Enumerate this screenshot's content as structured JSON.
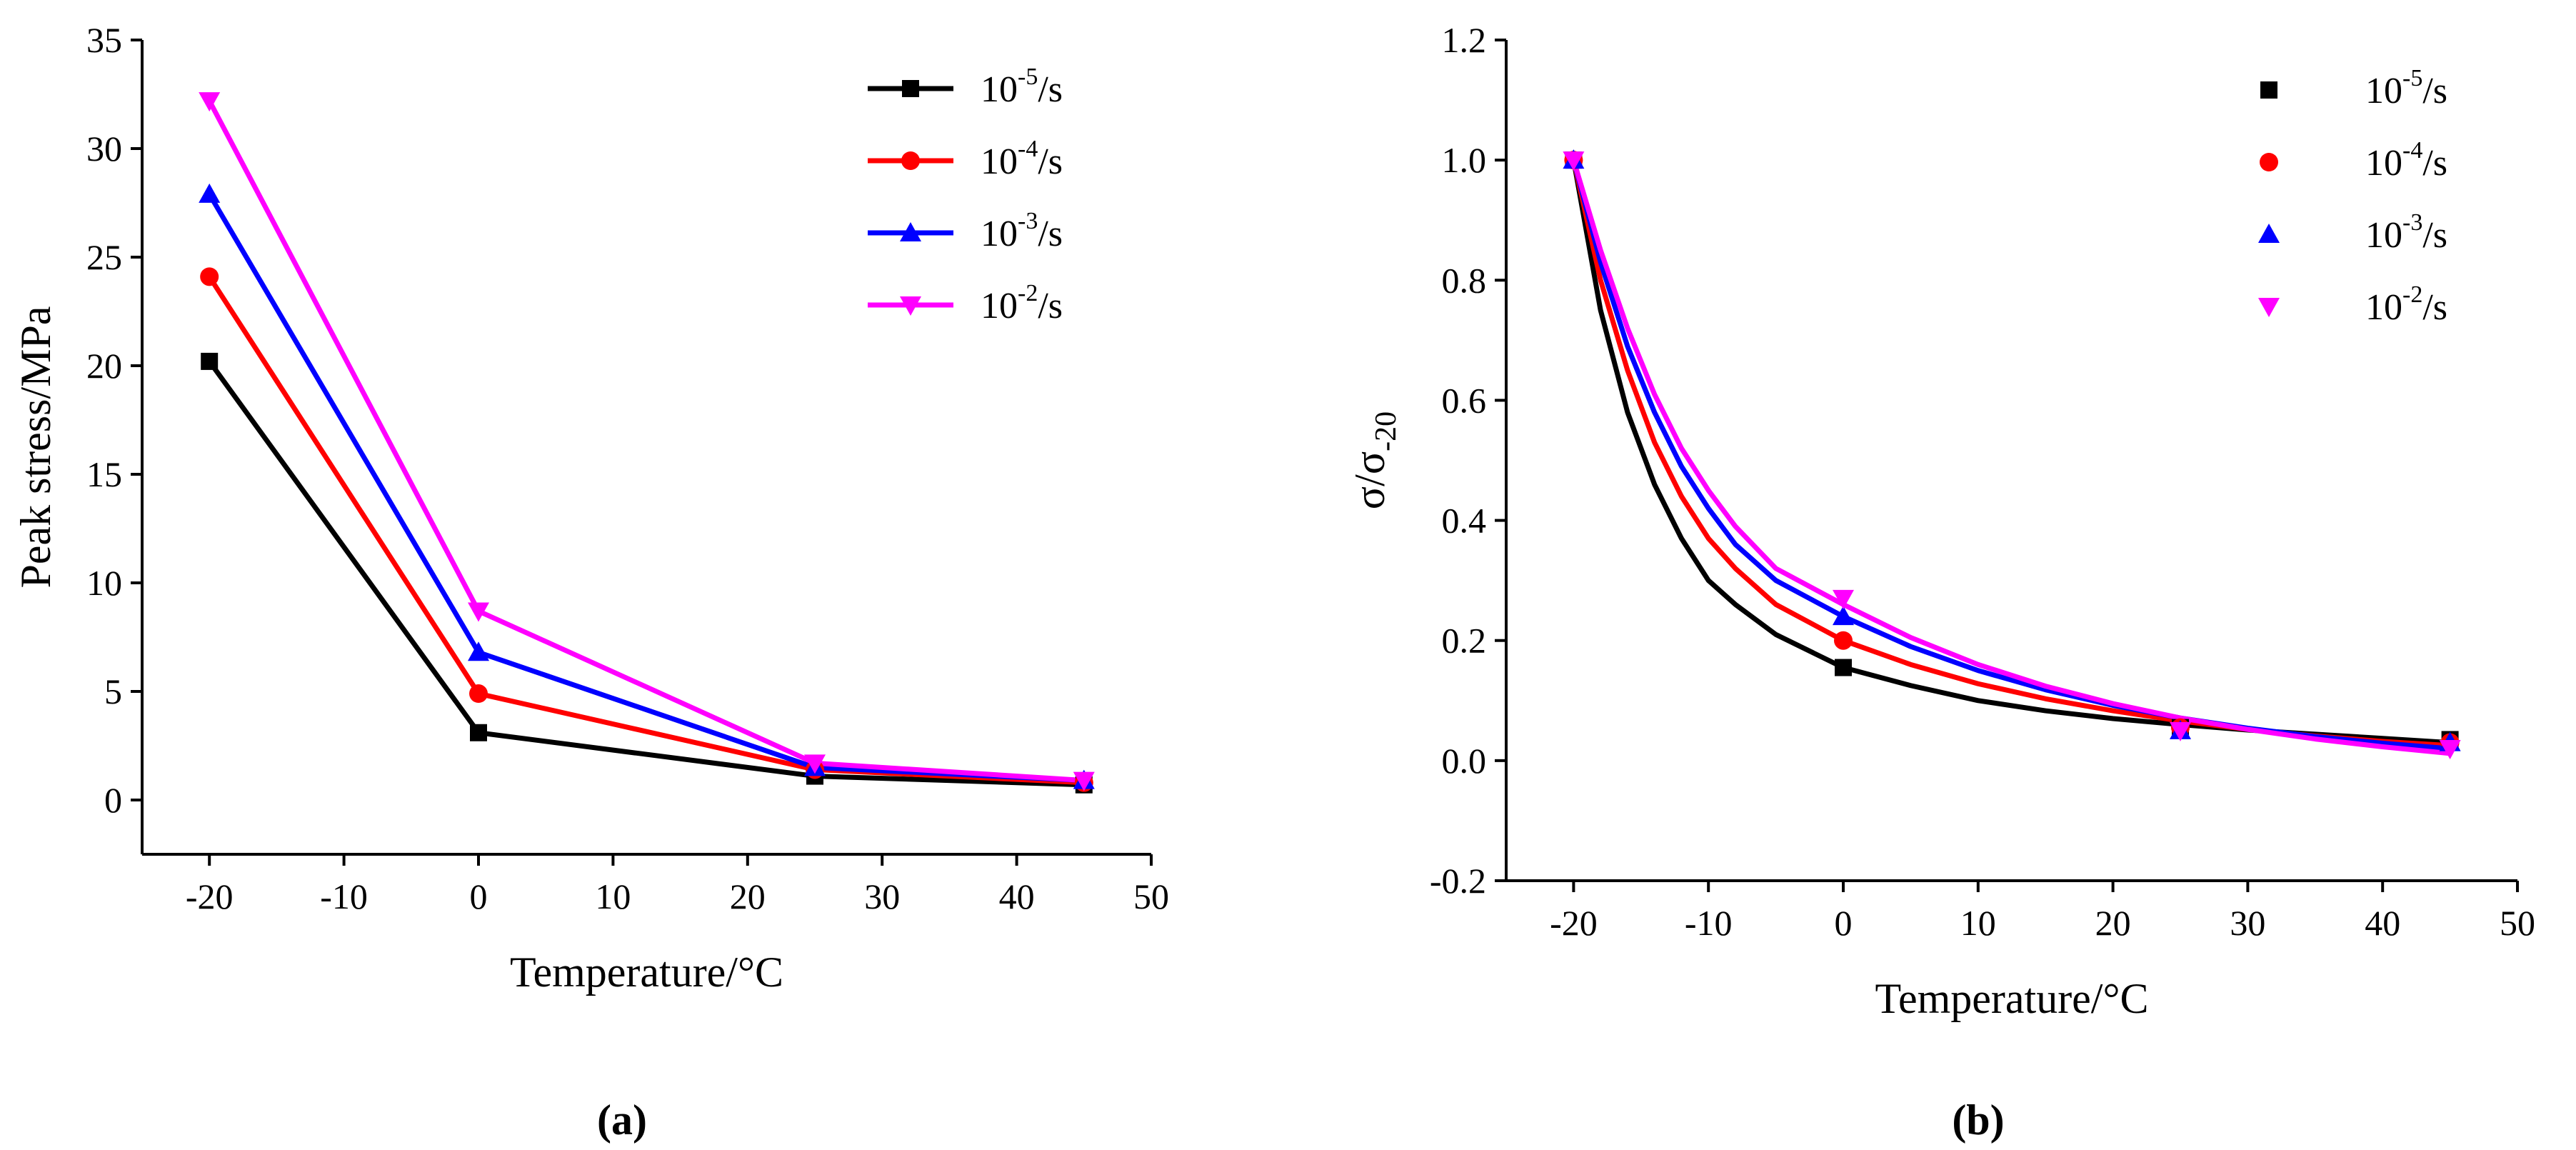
{
  "panel_a_caption": "(a)",
  "panel_b_caption": "(b)",
  "colors": {
    "s1": "#000000",
    "s2": "#ff0000",
    "s3": "#0000ff",
    "s4": "#ff00ff"
  },
  "chart_data": [
    {
      "type": "line",
      "panel": "(a)",
      "xlabel": "Temperature/°C",
      "ylabel": "Peak stress/MPa",
      "xlim": [
        -25,
        50
      ],
      "ylim": [
        -2.5,
        35
      ],
      "xticks": [
        -20,
        -10,
        0,
        10,
        20,
        30,
        40,
        50
      ],
      "yticks": [
        0,
        5,
        10,
        15,
        20,
        25,
        30,
        35
      ],
      "x": [
        -20,
        0,
        25,
        45
      ],
      "legend_position": "top-right",
      "series": [
        {
          "name": "10-5/s",
          "base": "10",
          "exp": "-5",
          "unit": "/s",
          "marker": "square",
          "values": [
            20.2,
            3.1,
            1.1,
            0.7
          ]
        },
        {
          "name": "10-4/s",
          "base": "10",
          "exp": "-4",
          "unit": "/s",
          "marker": "circle",
          "values": [
            24.1,
            4.9,
            1.4,
            0.8
          ]
        },
        {
          "name": "10-3/s",
          "base": "10",
          "exp": "-3",
          "unit": "/s",
          "marker": "triangle-up",
          "values": [
            27.9,
            6.8,
            1.5,
            0.9
          ]
        },
        {
          "name": "10-2/s",
          "base": "10",
          "exp": "-2",
          "unit": "/s",
          "marker": "triangle-down",
          "values": [
            32.2,
            8.7,
            1.7,
            0.9
          ]
        }
      ]
    },
    {
      "type": "scatter",
      "panel": "(b)",
      "xlabel": "Temperature/°C",
      "ylabel_main": "σ/σ",
      "ylabel_sub": "-20",
      "xlim": [
        -25,
        50
      ],
      "ylim": [
        -0.2,
        1.2
      ],
      "xticks": [
        -20,
        -10,
        0,
        10,
        20,
        30,
        40,
        50
      ],
      "yticks": [
        -0.2,
        0.0,
        0.2,
        0.4,
        0.6,
        0.8,
        1.0,
        1.2
      ],
      "x": [
        -20,
        0,
        25,
        45
      ],
      "legend_position": "top-right",
      "series": [
        {
          "name": "10-5/s",
          "base": "10",
          "exp": "-5",
          "unit": "/s",
          "marker": "square",
          "values": [
            1.0,
            0.155,
            0.055,
            0.035
          ],
          "fit_x": [
            -20,
            -18,
            -16,
            -14,
            -12,
            -10,
            -8,
            -5,
            0,
            5,
            10,
            15,
            20,
            25,
            30,
            35,
            40,
            45
          ],
          "fit_y": [
            1.0,
            0.75,
            0.58,
            0.46,
            0.37,
            0.3,
            0.26,
            0.21,
            0.155,
            0.125,
            0.1,
            0.083,
            0.07,
            0.06,
            0.051,
            0.044,
            0.037,
            0.03
          ]
        },
        {
          "name": "10-4/s",
          "base": "10",
          "exp": "-4",
          "unit": "/s",
          "marker": "circle",
          "values": [
            1.0,
            0.2,
            0.055,
            0.03
          ],
          "fit_x": [
            -20,
            -18,
            -16,
            -14,
            -12,
            -10,
            -8,
            -5,
            0,
            5,
            10,
            15,
            20,
            25,
            30,
            35,
            40,
            45
          ],
          "fit_y": [
            1.0,
            0.8,
            0.65,
            0.53,
            0.44,
            0.37,
            0.32,
            0.26,
            0.2,
            0.16,
            0.128,
            0.103,
            0.083,
            0.066,
            0.052,
            0.041,
            0.032,
            0.025
          ]
        },
        {
          "name": "10-3/s",
          "base": "10",
          "exp": "-3",
          "unit": "/s",
          "marker": "triangle-up",
          "values": [
            1.0,
            0.24,
            0.05,
            0.03
          ],
          "fit_x": [
            -20,
            -18,
            -16,
            -14,
            -12,
            -10,
            -8,
            -5,
            0,
            5,
            10,
            15,
            20,
            25,
            30,
            35,
            40,
            45
          ],
          "fit_y": [
            1.0,
            0.83,
            0.69,
            0.58,
            0.49,
            0.42,
            0.36,
            0.3,
            0.24,
            0.19,
            0.15,
            0.118,
            0.092,
            0.071,
            0.054,
            0.04,
            0.029,
            0.02
          ]
        },
        {
          "name": "10-2/s",
          "base": "10",
          "exp": "-2",
          "unit": "/s",
          "marker": "triangle-down",
          "values": [
            1.0,
            0.27,
            0.05,
            0.02
          ],
          "fit_x": [
            -20,
            -18,
            -16,
            -14,
            -12,
            -10,
            -8,
            -5,
            0,
            5,
            10,
            15,
            20,
            25,
            30,
            35,
            40,
            45
          ],
          "fit_y": [
            1.0,
            0.85,
            0.72,
            0.61,
            0.52,
            0.45,
            0.39,
            0.32,
            0.26,
            0.205,
            0.16,
            0.124,
            0.095,
            0.071,
            0.052,
            0.036,
            0.023,
            0.012
          ]
        }
      ]
    }
  ]
}
